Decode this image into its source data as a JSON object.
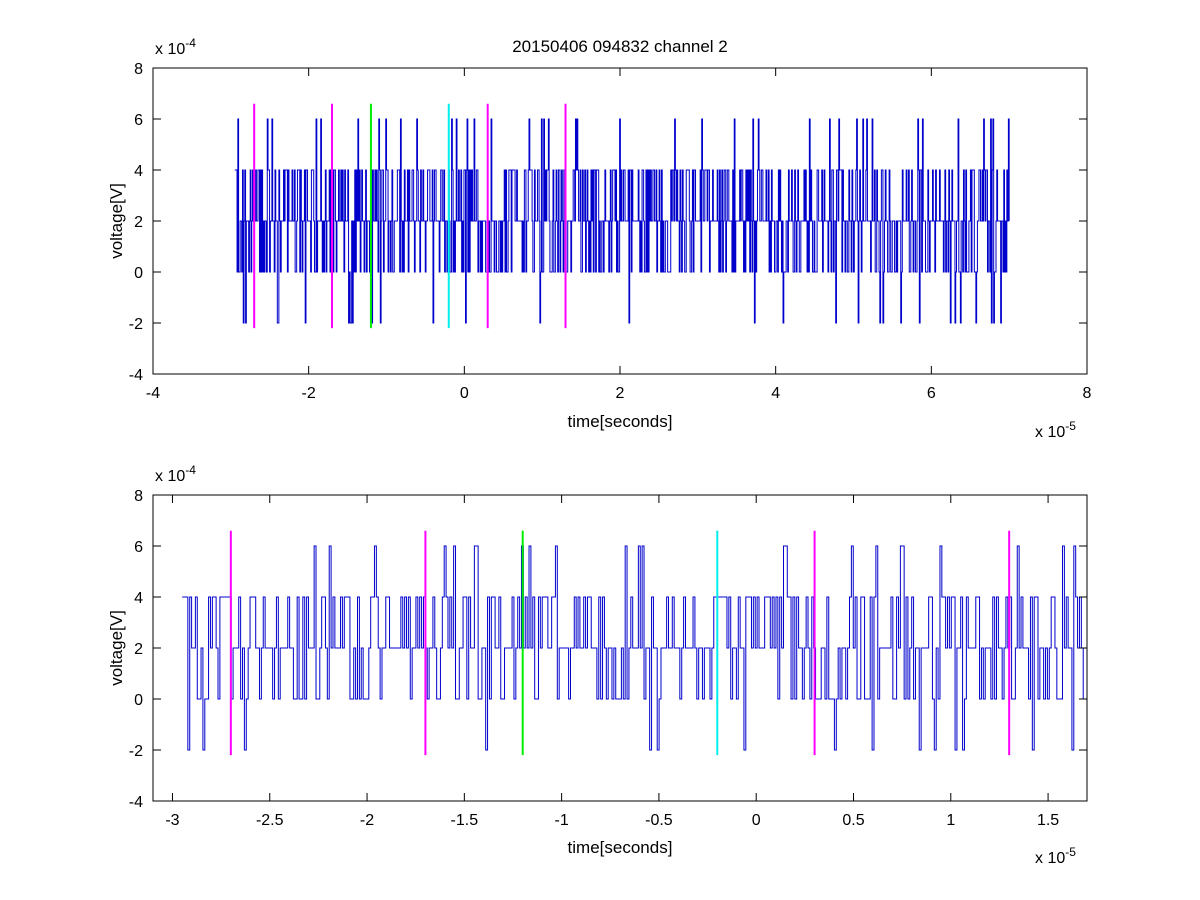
{
  "figure": {
    "title": "20150406 094832 channel 2",
    "colors": {
      "signal": "#0000cc",
      "marker_magenta": "#ff00ff",
      "marker_green": "#00ee00",
      "marker_cyan": "#00eeee",
      "axes": "#000000",
      "background": "#ffffff"
    }
  },
  "chart_data": [
    {
      "type": "line",
      "title": "20150406 094832 channel 2",
      "xlabel": "time[seconds]",
      "ylabel": "voltage[V]",
      "x_exponent_label": "x 10",
      "x_exponent": "-5",
      "y_exponent_label": "x 10",
      "y_exponent": "-4",
      "x_scale": 1e-05,
      "y_scale": 0.0001,
      "xlim": [
        -4,
        8
      ],
      "ylim": [
        -4,
        8
      ],
      "x_ticks": [
        -4,
        -2,
        0,
        2,
        4,
        6,
        8
      ],
      "x_tick_labels": [
        "-4",
        "-2",
        "0",
        "2",
        "4",
        "6",
        "8"
      ],
      "y_ticks": [
        -4,
        -2,
        0,
        2,
        4,
        6,
        8
      ],
      "y_tick_labels": [
        "-4",
        "-2",
        "0",
        "2",
        "4",
        "6",
        "8"
      ],
      "grid": false,
      "signal": {
        "x_start": -2.95,
        "x_end": 7.0,
        "levels": [
          -2,
          0,
          2,
          4,
          6
        ],
        "baseline": 2,
        "seed": 20150406
      },
      "markers": [
        {
          "x": -2.7,
          "y_range": [
            -2.2,
            6.6
          ],
          "color": "magenta"
        },
        {
          "x": -1.7,
          "y_range": [
            -2.2,
            6.6
          ],
          "color": "magenta"
        },
        {
          "x": -1.2,
          "y_range": [
            -2.2,
            6.6
          ],
          "color": "green"
        },
        {
          "x": -0.2,
          "y_range": [
            -2.2,
            6.6
          ],
          "color": "cyan"
        },
        {
          "x": 0.3,
          "y_range": [
            -2.2,
            6.6
          ],
          "color": "magenta"
        },
        {
          "x": 1.3,
          "y_range": [
            -2.2,
            6.6
          ],
          "color": "magenta"
        }
      ]
    },
    {
      "type": "line",
      "title": "",
      "xlabel": "time[seconds]",
      "ylabel": "voltage[V]",
      "x_exponent_label": "x 10",
      "x_exponent": "-5",
      "y_exponent_label": "x 10",
      "y_exponent": "-4",
      "x_scale": 1e-05,
      "y_scale": 0.0001,
      "xlim": [
        -3.1,
        1.7
      ],
      "ylim": [
        -4,
        8
      ],
      "x_ticks": [
        -3,
        -2.5,
        -2,
        -1.5,
        -1,
        -0.5,
        0,
        0.5,
        1,
        1.5
      ],
      "x_tick_labels": [
        "-3",
        "-2.5",
        "-2",
        "-1.5",
        "-1",
        "-0.5",
        "0",
        "0.5",
        "1",
        "1.5"
      ],
      "y_ticks": [
        -4,
        -2,
        0,
        2,
        4,
        6,
        8
      ],
      "y_tick_labels": [
        "-4",
        "-2",
        "0",
        "2",
        "4",
        "6",
        "8"
      ],
      "grid": false,
      "signal": {
        "x_start": -2.95,
        "x_end": 1.7,
        "levels": [
          -2,
          0,
          2,
          4,
          6
        ],
        "baseline": 2,
        "seed": 94832
      },
      "markers": [
        {
          "x": -2.7,
          "y_range": [
            -2.2,
            6.6
          ],
          "color": "magenta"
        },
        {
          "x": -1.7,
          "y_range": [
            -2.2,
            6.6
          ],
          "color": "magenta"
        },
        {
          "x": -1.2,
          "y_range": [
            -2.2,
            6.6
          ],
          "color": "green"
        },
        {
          "x": -0.2,
          "y_range": [
            -2.2,
            6.6
          ],
          "color": "cyan"
        },
        {
          "x": 0.3,
          "y_range": [
            -2.2,
            6.6
          ],
          "color": "magenta"
        },
        {
          "x": 1.3,
          "y_range": [
            -2.2,
            6.6
          ],
          "color": "magenta"
        }
      ]
    }
  ]
}
